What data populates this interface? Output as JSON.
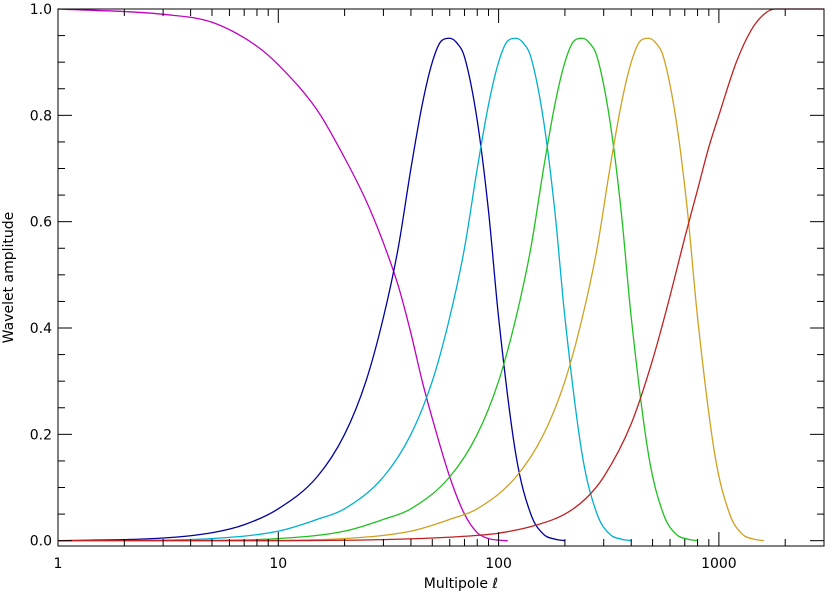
{
  "chart_data": {
    "type": "line",
    "title": "",
    "xlabel": "Multipole ℓ",
    "ylabel": "Wavelet amplitude",
    "xscale": "log",
    "xlim": [
      1,
      3000
    ],
    "ylim": [
      -0.01,
      1.0
    ],
    "grid": false,
    "legend": "none",
    "x_tick_labels": [
      "1",
      "10",
      "100",
      "1000"
    ],
    "y_tick_labels": [
      "0.0",
      "0.2",
      "0.4",
      "0.6",
      "0.8",
      "1.0"
    ],
    "series": [
      {
        "color": "#c000c0",
        "x": [
          1,
          3,
          5,
          8,
          10,
          15,
          20,
          25,
          30,
          35,
          40,
          45,
          50,
          60,
          70,
          80,
          90,
          100,
          110
        ],
        "y": [
          1.0,
          0.99,
          0.975,
          0.93,
          0.895,
          0.81,
          0.72,
          0.64,
          0.56,
          0.48,
          0.39,
          0.3,
          0.23,
          0.12,
          0.05,
          0.015,
          0.004,
          0.001,
          0.0
        ]
      },
      {
        "color": "#0000a0",
        "x": [
          1,
          3,
          5,
          7,
          10,
          15,
          20,
          25,
          30,
          35,
          40,
          45,
          50,
          55,
          60,
          65,
          70,
          80,
          90,
          100,
          120,
          140,
          160,
          180,
          200
        ],
        "y": [
          0.0,
          0.005,
          0.015,
          0.03,
          0.06,
          0.12,
          0.2,
          0.3,
          0.42,
          0.55,
          0.7,
          0.82,
          0.9,
          0.94,
          0.945,
          0.935,
          0.91,
          0.79,
          0.62,
          0.42,
          0.16,
          0.05,
          0.012,
          0.003,
          0.0
        ]
      },
      {
        "color": "#00b0d0",
        "x": [
          2,
          5,
          10,
          15,
          20,
          30,
          40,
          50,
          60,
          70,
          80,
          90,
          100,
          110,
          120,
          130,
          140,
          160,
          180,
          200,
          240,
          280,
          320,
          360,
          400
        ],
        "y": [
          0.0,
          0.004,
          0.018,
          0.04,
          0.06,
          0.12,
          0.2,
          0.3,
          0.42,
          0.55,
          0.7,
          0.82,
          0.9,
          0.94,
          0.945,
          0.935,
          0.91,
          0.79,
          0.62,
          0.42,
          0.16,
          0.05,
          0.012,
          0.003,
          0.0
        ]
      },
      {
        "color": "#20c020",
        "x": [
          4,
          10,
          20,
          30,
          40,
          60,
          80,
          100,
          120,
          140,
          160,
          180,
          200,
          220,
          240,
          260,
          280,
          320,
          360,
          400,
          480,
          560,
          640,
          720,
          800
        ],
        "y": [
          0.0,
          0.004,
          0.018,
          0.04,
          0.06,
          0.12,
          0.2,
          0.3,
          0.42,
          0.55,
          0.7,
          0.82,
          0.9,
          0.94,
          0.945,
          0.935,
          0.91,
          0.79,
          0.62,
          0.42,
          0.16,
          0.05,
          0.012,
          0.003,
          0.0
        ]
      },
      {
        "color": "#d0a020",
        "x": [
          8,
          20,
          40,
          60,
          80,
          120,
          160,
          200,
          240,
          280,
          320,
          360,
          400,
          440,
          480,
          520,
          560,
          640,
          720,
          800,
          960,
          1120,
          1280,
          1440,
          1600
        ],
        "y": [
          0.0,
          0.004,
          0.018,
          0.04,
          0.06,
          0.12,
          0.2,
          0.3,
          0.42,
          0.55,
          0.7,
          0.82,
          0.9,
          0.94,
          0.945,
          0.935,
          0.91,
          0.79,
          0.62,
          0.42,
          0.16,
          0.05,
          0.012,
          0.003,
          0.0
        ]
      },
      {
        "color": "#c02020",
        "x": [
          1,
          10,
          30,
          50,
          80,
          100,
          150,
          200,
          250,
          300,
          400,
          500,
          600,
          700,
          800,
          900,
          1000,
          1200,
          1400,
          1600,
          1800,
          2000,
          3000
        ],
        "y": [
          0.0,
          0.0,
          0.002,
          0.005,
          0.01,
          0.014,
          0.03,
          0.05,
          0.08,
          0.12,
          0.22,
          0.34,
          0.46,
          0.57,
          0.66,
          0.74,
          0.8,
          0.9,
          0.96,
          0.99,
          1.0,
          1.0,
          1.0
        ]
      }
    ]
  }
}
